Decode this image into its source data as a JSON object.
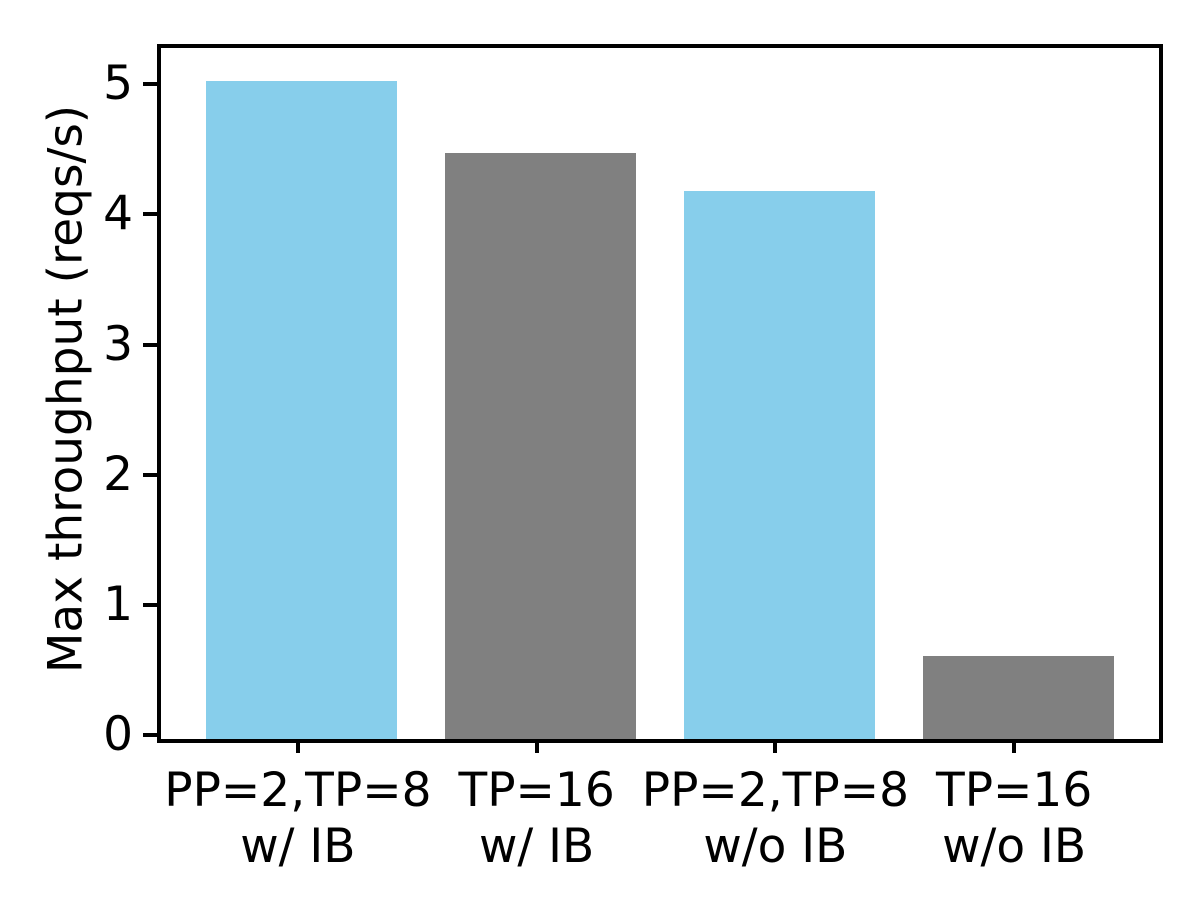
{
  "figure": {
    "background": "#ffffff",
    "axis_color": "#000000",
    "text_color": "#000000"
  },
  "chart_data": {
    "type": "bar",
    "title": "",
    "xlabel": "",
    "ylabel": "Max throughput (reqs/s)",
    "categories": [
      "PP=2,TP=8\nw/ IB",
      "TP=16\nw/ IB",
      "PP=2,TP=8\nw/o IB",
      "TP=16\nw/o IB"
    ],
    "values": [
      5.06,
      4.5,
      4.21,
      0.64
    ],
    "bar_colors": [
      "#87CEEB",
      "#808080",
      "#87CEEB",
      "#808080"
    ],
    "bar_names": [
      "bar-pp2-tp8-with-ib",
      "bar-tp16-with-ib",
      "bar-pp2-tp8-without-ib",
      "bar-tp16-without-ib"
    ],
    "yticks": [
      0,
      1,
      2,
      3,
      4,
      5
    ],
    "ylim": [
      0,
      5.31
    ],
    "grid": false,
    "legend_position": "none"
  }
}
